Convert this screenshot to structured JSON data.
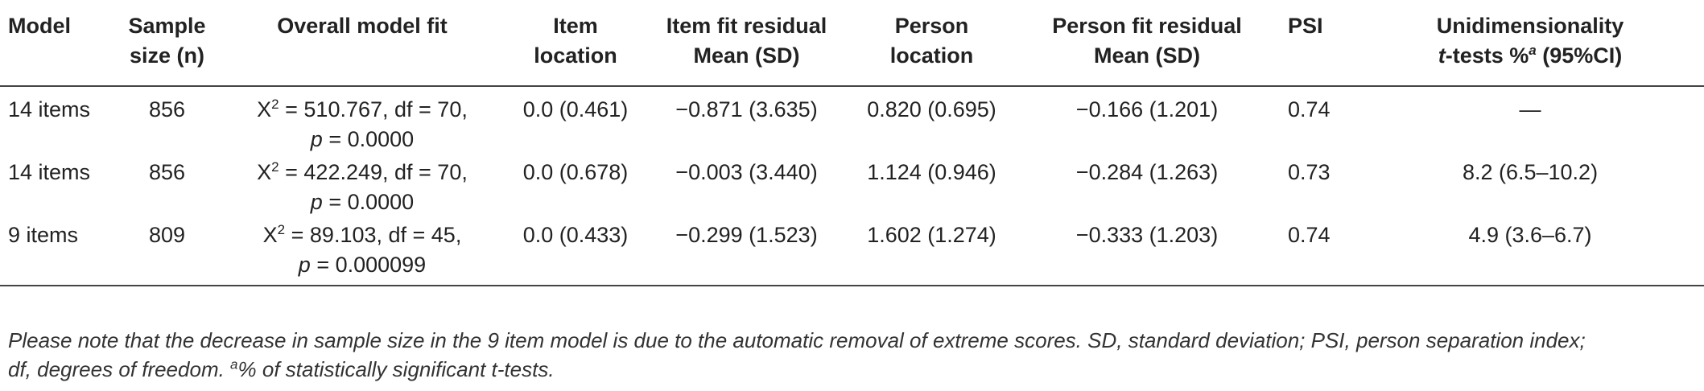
{
  "table": {
    "headers": {
      "model": "Model",
      "sample_size": [
        "Sample",
        "size (n)"
      ],
      "overall_fit": "Overall model fit",
      "item_location": [
        "Item",
        "location"
      ],
      "item_fit": [
        "Item fit residual",
        "Mean (SD)"
      ],
      "person_location": [
        "Person",
        "location"
      ],
      "person_fit": [
        "Person fit residual",
        "Mean (SD)"
      ],
      "psi": "PSI",
      "unidim": {
        "line1": "Unidimensionality",
        "t": "t",
        "tests": "-tests %",
        "sup": "a",
        "ci": " (95%CI)"
      }
    },
    "rows": [
      {
        "model": "14 items",
        "n": "856",
        "chi_prefix": "X",
        "chi_sup": "2",
        "chi_rest": " = 510.767, df = 70,",
        "p_label": "p",
        "p_rest": " = 0.0000",
        "item_location": "0.0 (0.461)",
        "item_fit": "−0.871 (3.635)",
        "person_location": "0.820 (0.695)",
        "person_fit": "−0.166 (1.201)",
        "psi": "0.74",
        "unidim": "—"
      },
      {
        "model": "14 items",
        "n": "856",
        "chi_prefix": "X",
        "chi_sup": "2",
        "chi_rest": " = 422.249, df = 70,",
        "p_label": "p",
        "p_rest": " = 0.0000",
        "item_location": "0.0 (0.678)",
        "item_fit": "−0.003 (3.440)",
        "person_location": "1.124 (0.946)",
        "person_fit": "−0.284 (1.263)",
        "psi": "0.73",
        "unidim": "8.2 (6.5–10.2)"
      },
      {
        "model": "9 items",
        "n": "809",
        "chi_prefix": "X",
        "chi_sup": "2",
        "chi_rest": " = 89.103, df = 45,",
        "p_label": "p",
        "p_rest": " = 0.000099",
        "item_location": "0.0 (0.433)",
        "item_fit": "−0.299 (1.523)",
        "person_location": "1.602 (1.274)",
        "person_fit": "−0.333 (1.203)",
        "psi": "0.74",
        "unidim": "4.9 (3.6–6.7)"
      }
    ]
  },
  "footnote": {
    "line1": "Please note that the decrease in sample size in the 9 item model is due to the automatic removal of extreme scores. SD, standard deviation; PSI, person separation index;",
    "line2_pre": "df, degrees of freedom. ",
    "sup": "a",
    "line2_post": "% of statistically significant t-tests."
  }
}
